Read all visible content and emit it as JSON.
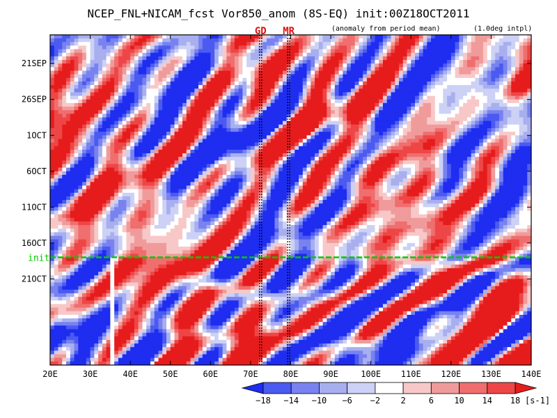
{
  "chart_data": {
    "type": "heatmap",
    "title": "NCEP_FNL+NICAM_fcst Vor850_anom (8S-EQ) init:00Z18OCT2011",
    "subtitle_left": "(anomaly from period mean)",
    "subtitle_right": "(1.0deg intpl)",
    "x_axis": {
      "range": [
        20,
        140
      ],
      "ticks": [
        20,
        30,
        40,
        50,
        60,
        70,
        80,
        90,
        100,
        110,
        120,
        130,
        140
      ],
      "tick_labels": [
        "20E",
        "30E",
        "40E",
        "50E",
        "60E",
        "70E",
        "80E",
        "90E",
        "100E",
        "110E",
        "120E",
        "130E",
        "140E"
      ]
    },
    "y_axis": {
      "start_day": 0,
      "end_day": 46,
      "ticks_day": [
        4,
        9,
        14,
        19,
        24,
        29,
        34
      ],
      "tick_labels": [
        "21SEP",
        "26SEP",
        "1OCT",
        "6OCT",
        "11OCT",
        "16OCT",
        "21OCT"
      ]
    },
    "init": {
      "label": "init",
      "day": 31
    },
    "markers": [
      {
        "label": "GD",
        "lon": 72.5
      },
      {
        "label": "MR",
        "lon": 79.5
      }
    ],
    "missing_band": [
      35,
      36
    ],
    "colorbar": {
      "levels": [
        -18,
        -14,
        -10,
        -6,
        -2,
        2,
        6,
        10,
        14,
        18
      ],
      "level_labels": [
        "−18",
        "−14",
        "−10",
        "−6",
        "−2",
        "2",
        "6",
        "10",
        "14",
        "18"
      ],
      "colors": [
        "#1e2df0",
        "#4b5af0",
        "#7882f0",
        "#a8afef",
        "#ccd1f5",
        "#ffffff",
        "#f8c8c8",
        "#f09b9b",
        "#f06e6e",
        "#ee4646",
        "#e61c1c"
      ],
      "unit": "[s-1]"
    }
  },
  "colors": {
    "init_line": "#00cc00",
    "frame": "#000000"
  }
}
